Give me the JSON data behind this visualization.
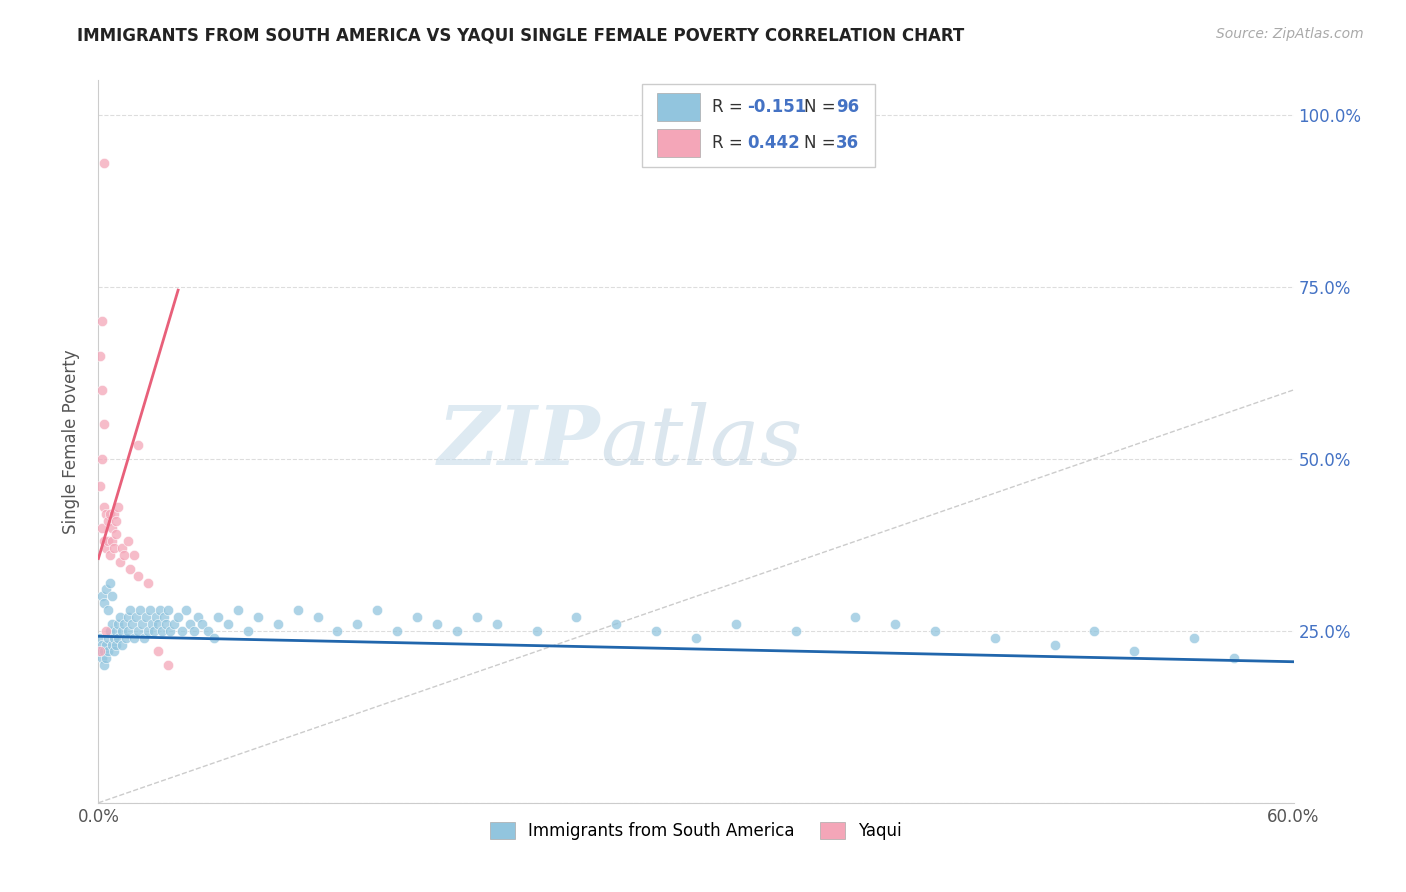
{
  "title": "IMMIGRANTS FROM SOUTH AMERICA VS YAQUI SINGLE FEMALE POVERTY CORRELATION CHART",
  "source": "Source: ZipAtlas.com",
  "ylabel": "Single Female Poverty",
  "legend_r1": "-0.151",
  "legend_n1": "96",
  "legend_r2": "0.442",
  "legend_n2": "36",
  "blue_color": "#92c5de",
  "pink_color": "#f4a6b8",
  "blue_line_color": "#2166ac",
  "pink_line_color": "#e8607a",
  "diag_color": "#cccccc",
  "watermark_zip": "ZIP",
  "watermark_atlas": "atlas",
  "xlim": [
    0.0,
    0.6
  ],
  "ylim": [
    0.0,
    1.05
  ],
  "blue_trend_x": [
    0.0,
    0.6
  ],
  "blue_trend_y": [
    0.242,
    0.205
  ],
  "pink_trend_x": [
    0.0,
    0.04
  ],
  "pink_trend_y": [
    0.355,
    0.745
  ],
  "blue_scatter_x": [
    0.001,
    0.001,
    0.002,
    0.002,
    0.003,
    0.003,
    0.004,
    0.004,
    0.005,
    0.005,
    0.006,
    0.007,
    0.007,
    0.008,
    0.008,
    0.009,
    0.009,
    0.01,
    0.01,
    0.011,
    0.012,
    0.012,
    0.013,
    0.014,
    0.015,
    0.015,
    0.016,
    0.017,
    0.018,
    0.019,
    0.02,
    0.021,
    0.022,
    0.023,
    0.024,
    0.025,
    0.026,
    0.027,
    0.028,
    0.029,
    0.03,
    0.031,
    0.032,
    0.033,
    0.034,
    0.035,
    0.036,
    0.038,
    0.04,
    0.042,
    0.044,
    0.046,
    0.048,
    0.05,
    0.052,
    0.055,
    0.058,
    0.06,
    0.065,
    0.07,
    0.075,
    0.08,
    0.09,
    0.1,
    0.11,
    0.12,
    0.13,
    0.14,
    0.15,
    0.16,
    0.17,
    0.18,
    0.19,
    0.2,
    0.22,
    0.24,
    0.26,
    0.28,
    0.3,
    0.32,
    0.35,
    0.38,
    0.4,
    0.42,
    0.45,
    0.48,
    0.5,
    0.52,
    0.55,
    0.57,
    0.002,
    0.003,
    0.004,
    0.005,
    0.006,
    0.007
  ],
  "blue_scatter_y": [
    0.24,
    0.22,
    0.23,
    0.21,
    0.22,
    0.2,
    0.23,
    0.21,
    0.24,
    0.22,
    0.25,
    0.23,
    0.26,
    0.24,
    0.22,
    0.25,
    0.23,
    0.26,
    0.24,
    0.27,
    0.25,
    0.23,
    0.26,
    0.24,
    0.27,
    0.25,
    0.28,
    0.26,
    0.24,
    0.27,
    0.25,
    0.28,
    0.26,
    0.24,
    0.27,
    0.25,
    0.28,
    0.26,
    0.25,
    0.27,
    0.26,
    0.28,
    0.25,
    0.27,
    0.26,
    0.28,
    0.25,
    0.26,
    0.27,
    0.25,
    0.28,
    0.26,
    0.25,
    0.27,
    0.26,
    0.25,
    0.24,
    0.27,
    0.26,
    0.28,
    0.25,
    0.27,
    0.26,
    0.28,
    0.27,
    0.25,
    0.26,
    0.28,
    0.25,
    0.27,
    0.26,
    0.25,
    0.27,
    0.26,
    0.25,
    0.27,
    0.26,
    0.25,
    0.24,
    0.26,
    0.25,
    0.27,
    0.26,
    0.25,
    0.24,
    0.23,
    0.25,
    0.22,
    0.24,
    0.21,
    0.3,
    0.29,
    0.31,
    0.28,
    0.32,
    0.3
  ],
  "pink_scatter_x": [
    0.003,
    0.002,
    0.001,
    0.002,
    0.003,
    0.002,
    0.001,
    0.003,
    0.002,
    0.004,
    0.003,
    0.005,
    0.004,
    0.006,
    0.005,
    0.007,
    0.006,
    0.008,
    0.007,
    0.009,
    0.008,
    0.01,
    0.009,
    0.012,
    0.011,
    0.015,
    0.013,
    0.018,
    0.016,
    0.02,
    0.025,
    0.03,
    0.035,
    0.004,
    0.001,
    0.02
  ],
  "pink_scatter_y": [
    0.93,
    0.7,
    0.65,
    0.6,
    0.55,
    0.5,
    0.46,
    0.43,
    0.4,
    0.42,
    0.38,
    0.41,
    0.37,
    0.42,
    0.38,
    0.4,
    0.36,
    0.42,
    0.38,
    0.41,
    0.37,
    0.43,
    0.39,
    0.37,
    0.35,
    0.38,
    0.36,
    0.36,
    0.34,
    0.33,
    0.32,
    0.22,
    0.2,
    0.25,
    0.22,
    0.52
  ]
}
